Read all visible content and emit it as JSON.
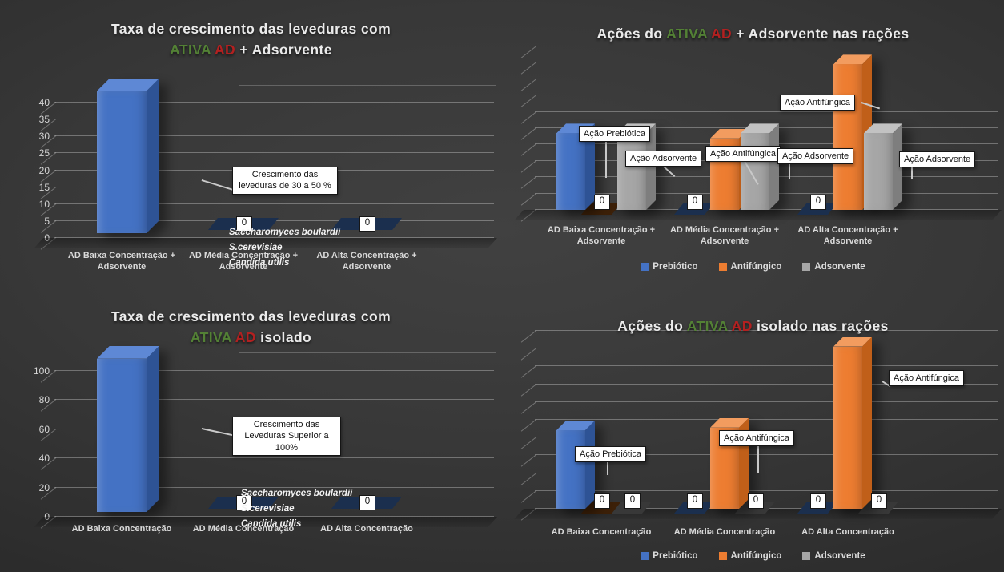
{
  "colors": {
    "title_green": "#538135",
    "title_red": "#B32020",
    "series3d": {
      "prebiotico": {
        "front": "#4472C4",
        "top": "#5E88D5",
        "side": "#2E5395"
      },
      "antifungico": {
        "front": "#ED7D31",
        "top": "#F29C5F",
        "side": "#C05F19"
      },
      "adsorvente": {
        "front": "#A6A6A6",
        "top": "#C2C2C2",
        "side": "#7E7E7E"
      }
    },
    "zero_base": {
      "prebiotico": "#1B2F4E",
      "antifungico": "#3C2008",
      "adsorvente": "#383838"
    },
    "callout_bg": "#FFFFFF",
    "callout_border": "#000000"
  },
  "chart_data": [
    {
      "type": "bar",
      "style": "3d",
      "title_lines": [
        [
          {
            "text": "Taxa de crescimento das leveduras com",
            "color": "white"
          }
        ],
        [
          {
            "text": "ATIVA ",
            "color": "green"
          },
          {
            "text": "AD",
            "color": "red"
          },
          {
            "text": " + Adsorvente",
            "color": "white"
          }
        ]
      ],
      "categories": [
        "AD Baixa Concentração + Adsorvente",
        "AD Média Concentração + Adsorvente",
        "AD Alta Concentração + Adsorvente"
      ],
      "series": [
        {
          "name": "Crescimento das leveduras",
          "color_key": "prebiotico",
          "values": [
            42,
            0,
            0
          ]
        }
      ],
      "ylim": [
        0,
        45
      ],
      "yticks": [
        0,
        5,
        10,
        15,
        20,
        25,
        30,
        35,
        40
      ],
      "grid": true,
      "callouts": [
        "Crescimento das leveduras de 30 a 50 %"
      ],
      "notes": [
        "Saccharomyces boulardii",
        "S.cerevisiae",
        "Candida utilis"
      ]
    },
    {
      "type": "bar",
      "style": "3d",
      "title_lines": [
        [
          {
            "text": "Ações do ",
            "color": "white"
          },
          {
            "text": "ATIVA ",
            "color": "green"
          },
          {
            "text": "AD",
            "color": "red"
          },
          {
            "text": " + Adsorvente nas rações",
            "color": "white"
          }
        ]
      ],
      "categories": [
        "AD Baixa Concentração + Adsorvente",
        "AD Média Concentração + Adsorvente",
        "AD Alta Concentração + Adsorvente"
      ],
      "series": [
        {
          "name": "Prebiótico",
          "color_key": "prebiotico",
          "values": [
            30,
            0,
            0
          ]
        },
        {
          "name": "Antifúngico",
          "color_key": "antifungico",
          "values": [
            0,
            28,
            57
          ]
        },
        {
          "name": "Adsorvente",
          "color_key": "adsorvente",
          "values": [
            30,
            30,
            30
          ]
        }
      ],
      "ylim": [
        0,
        64
      ],
      "gridlines": 10,
      "grid": true,
      "legend_position": "bottom",
      "callouts": [
        "Ação Prebiótica",
        "Ação Adsorvente",
        "Ação Antifúngica",
        "Ação Adsorvente",
        "Ação Antifúngica",
        "Ação Adsorvente"
      ]
    },
    {
      "type": "bar",
      "style": "3d",
      "title_lines": [
        [
          {
            "text": "Taxa de crescimento das leveduras com",
            "color": "white"
          }
        ],
        [
          {
            "text": "ATIVA ",
            "color": "green"
          },
          {
            "text": "AD",
            "color": "red"
          },
          {
            "text": " isolado",
            "color": "white"
          }
        ]
      ],
      "categories": [
        "AD Baixa Concentração",
        "AD Média Concentração",
        "AD Alta Concentração"
      ],
      "series": [
        {
          "name": "Crescimento das leveduras",
          "color_key": "prebiotico",
          "values": [
            105,
            0,
            0
          ]
        }
      ],
      "ylim": [
        0,
        112
      ],
      "yticks": [
        0,
        20,
        40,
        60,
        80,
        100
      ],
      "grid": true,
      "callouts": [
        "Crescimento das Leveduras Superior a 100%"
      ],
      "notes": [
        "Saccharomyces boulardii",
        "S.cerevisiae",
        "Candida utilis"
      ]
    },
    {
      "type": "bar",
      "style": "3d",
      "title_lines": [
        [
          {
            "text": "Ações do ",
            "color": "white"
          },
          {
            "text": "ATIVA ",
            "color": "green"
          },
          {
            "text": "AD",
            "color": "red"
          },
          {
            "text": " isolado nas rações",
            "color": "white"
          }
        ]
      ],
      "categories": [
        "AD Baixa Concentração",
        "AD Média Concentração",
        "AD Alta Concentração"
      ],
      "series": [
        {
          "name": "Prebiótico",
          "color_key": "prebiotico",
          "values": [
            30,
            0,
            0
          ]
        },
        {
          "name": "Antifúngico",
          "color_key": "antifungico",
          "values": [
            0,
            31,
            62
          ]
        },
        {
          "name": "Adsorvente",
          "color_key": "adsorvente",
          "values": [
            0,
            0,
            0
          ]
        }
      ],
      "ylim": [
        0,
        68
      ],
      "gridlines": 10,
      "grid": true,
      "legend_position": "bottom",
      "callouts": [
        "Ação Prebiótica",
        "Ação Antifúngica",
        "Ação Antifúngica"
      ]
    }
  ]
}
